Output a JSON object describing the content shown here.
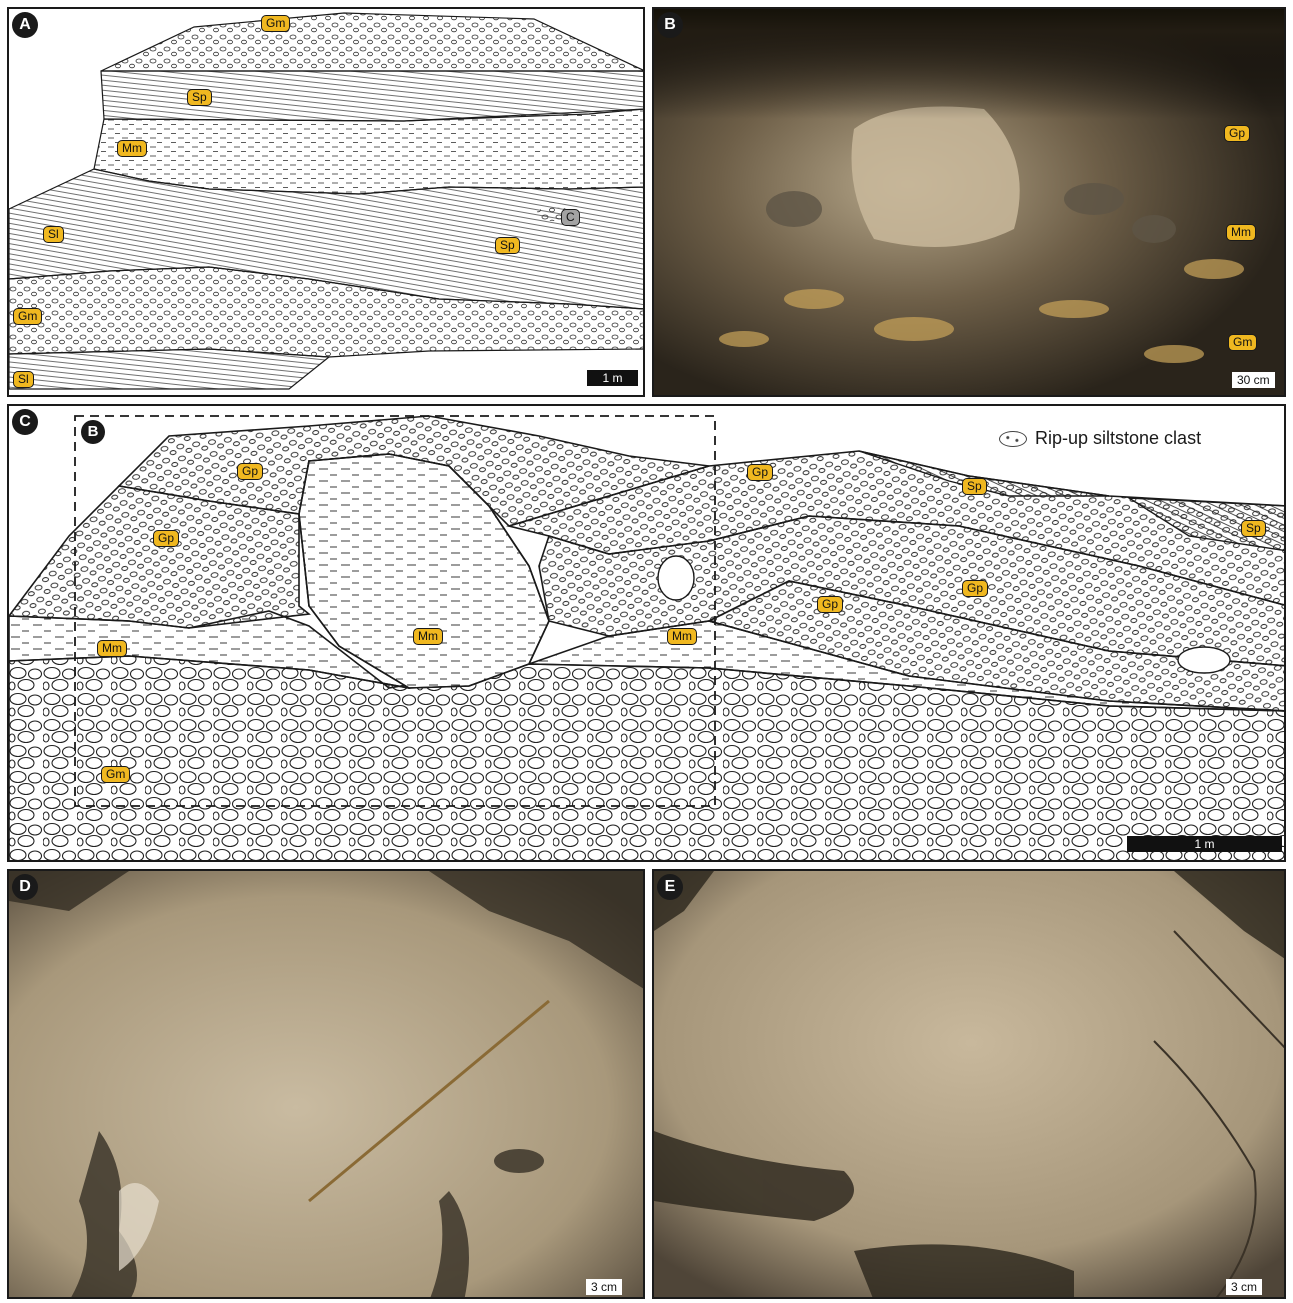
{
  "panels": {
    "A": {
      "letter": "A",
      "labels": [
        "Gm",
        "Sp",
        "Mm",
        "Sl",
        "Sp",
        "Gm",
        "Sl"
      ],
      "channel_label": "C",
      "scale": "1 m"
    },
    "B": {
      "letter": "B",
      "labels": [
        "Gp",
        "Mm",
        "Gm"
      ],
      "scale": "30 cm"
    },
    "C": {
      "letter": "C",
      "inset_letter": "B",
      "labels": [
        "Gp",
        "Gp",
        "Gp",
        "Sp",
        "Sp",
        "Gp",
        "Gp",
        "Mm",
        "Mm",
        "Mm",
        "Gm"
      ],
      "legend": "Rip-up siltstone clast",
      "scale": "1 m"
    },
    "D": {
      "letter": "D",
      "scale": "3 cm"
    },
    "E": {
      "letter": "E",
      "scale": "3 cm"
    }
  },
  "colors": {
    "label_fill": "#f0b820",
    "channel_fill": "#a3a3a3",
    "outline": "#1a1a1a"
  },
  "icons": {
    "clast": "rip-up-clast-icon"
  }
}
